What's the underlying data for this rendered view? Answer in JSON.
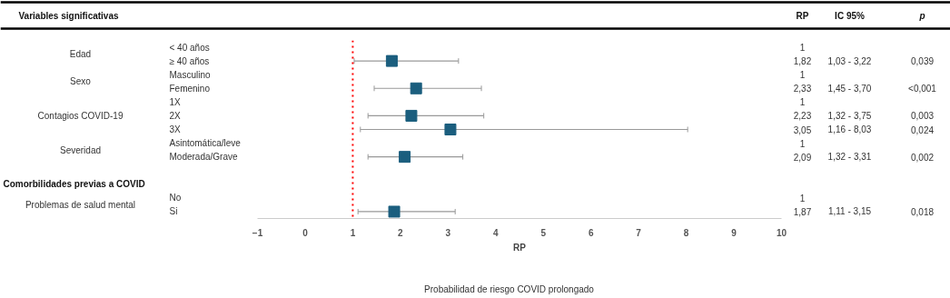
{
  "chart_data": {
    "type": "scatter",
    "orientation": "horizontal",
    "marker": "square",
    "color": "#1b5e7e",
    "xlabel": "RP",
    "categories": [
      "< 40 años",
      "≥ 40 años",
      "Masculino",
      "Femenino",
      "1X",
      "2X",
      "3X",
      "Asintomática/leve",
      "Moderada/Grave",
      null,
      null,
      "No",
      "Si"
    ],
    "values": [
      null,
      1.82,
      null,
      2.33,
      null,
      2.23,
      3.05,
      null,
      2.09,
      null,
      null,
      null,
      1.87
    ],
    "errors": [
      null,
      [
        1.03,
        3.22
      ],
      null,
      [
        1.45,
        3.7
      ],
      null,
      [
        1.32,
        3.75
      ],
      [
        1.16,
        8.03
      ],
      null,
      [
        1.32,
        3.31
      ],
      null,
      null,
      null,
      [
        1.11,
        3.15
      ]
    ],
    "value_labels": [
      "1",
      "1,82",
      "1",
      "2,33",
      "1",
      "2,23",
      "3,05",
      "1",
      "2,09",
      null,
      null,
      "1",
      "1,87"
    ],
    "xlim": [
      -1,
      10
    ],
    "xticks": [
      -1,
      0,
      1,
      2,
      3,
      4,
      5,
      6,
      7,
      8,
      9,
      10
    ],
    "ref_lines": [
      {
        "axis": "x",
        "value": 1,
        "color": "#ff0000",
        "line_style": "dotted"
      }
    ],
    "annotations": [
      "Variables significativas",
      "RP",
      "IC 95%",
      "p",
      "Comorbilidades previas a COVID",
      "Probabilidad de riesgo COVID prolongado",
      "Edad",
      "Sexo",
      "Contagios COVID-19",
      "Severidad",
      "Problemas de salud mental",
      "1,03 - 3,22",
      "0,039",
      "1,45 - 3,70",
      "<0,001",
      "1,32 - 3,75",
      "0,003",
      "1,16 - 8,03",
      "0,024",
      "1,32 - 3,31",
      "0,002",
      "1,11 - 3,15",
      "0,018"
    ]
  }
}
